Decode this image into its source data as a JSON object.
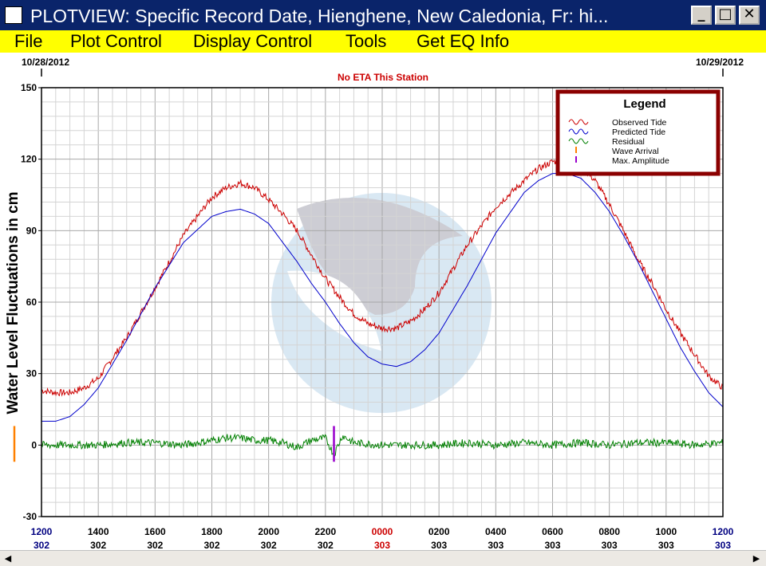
{
  "window": {
    "title": "PLOTVIEW: Specific Record Date, Hienghene, New Caledonia, Fr: hi...",
    "minimize_glyph": "_",
    "maximize_glyph": "□",
    "close_glyph": "✕"
  },
  "menu": [
    {
      "label": "File"
    },
    {
      "label": "Plot Control"
    },
    {
      "label": "Display Control"
    },
    {
      "label": "Tools"
    },
    {
      "label": "Get EQ Info"
    }
  ],
  "plot": {
    "date_left": "10/28/2012",
    "date_right": "10/29/2012",
    "eta_text": "No ETA This Station",
    "legend": {
      "title": "Legend",
      "items": [
        {
          "label": "Observed Tide",
          "color": "#cc0000"
        },
        {
          "label": "Predicted Tide",
          "color": "#0000cc"
        },
        {
          "label": "Residual",
          "color": "#008000"
        },
        {
          "label": "Wave Arrival",
          "color": "#ff8000"
        },
        {
          "label": "Max. Amplitude",
          "color": "#9900cc"
        }
      ]
    }
  },
  "colors": {
    "observed": "#cc0000",
    "predicted": "#0000cc",
    "residual": "#008000",
    "wave_arrival": "#ff8000",
    "max_amplitude": "#9900cc",
    "date_change_label": "#cc0000",
    "end_label": "#000080",
    "legend_frame": "#8b0000",
    "title_bar": "#0a246a",
    "menu_bar": "#ffff00"
  },
  "chart_data": {
    "type": "line",
    "ylabel": "Water Level Fluctuations in cm",
    "xlabel": "",
    "ylim": [
      -30,
      150
    ],
    "yticks": [
      -30,
      0,
      30,
      60,
      90,
      120,
      150
    ],
    "xlim_hours": [
      12,
      36
    ],
    "x_ticks": [
      {
        "time": "1200",
        "day": "302",
        "hour": 12,
        "style": "end"
      },
      {
        "time": "1400",
        "day": "302",
        "hour": 14,
        "style": "normal"
      },
      {
        "time": "1600",
        "day": "302",
        "hour": 16,
        "style": "normal"
      },
      {
        "time": "1800",
        "day": "302",
        "hour": 18,
        "style": "normal"
      },
      {
        "time": "2000",
        "day": "302",
        "hour": 20,
        "style": "normal"
      },
      {
        "time": "2200",
        "day": "302",
        "hour": 22,
        "style": "normal"
      },
      {
        "time": "0000",
        "day": "303",
        "hour": 24,
        "style": "date"
      },
      {
        "time": "0200",
        "day": "303",
        "hour": 26,
        "style": "normal"
      },
      {
        "time": "0400",
        "day": "303",
        "hour": 28,
        "style": "normal"
      },
      {
        "time": "0600",
        "day": "303",
        "hour": 30,
        "style": "normal"
      },
      {
        "time": "0800",
        "day": "303",
        "hour": 32,
        "style": "normal"
      },
      {
        "time": "1000",
        "day": "303",
        "hour": 34,
        "style": "normal"
      },
      {
        "time": "1200",
        "day": "303",
        "hour": 36,
        "style": "end"
      }
    ],
    "grid": true,
    "legend_position": "top-right",
    "series": [
      {
        "name": "Observed Tide",
        "x_hours": [
          12,
          12.5,
          13,
          13.5,
          14,
          15,
          16,
          17,
          18,
          18.5,
          19,
          19.5,
          20,
          20.5,
          21,
          21.5,
          22,
          22.5,
          23,
          23.5,
          24,
          24.5,
          25,
          25.5,
          26,
          27,
          28,
          29,
          29.5,
          30,
          30.5,
          31,
          31.5,
          32,
          32.5,
          33,
          33.5,
          34,
          34.5,
          35,
          35.5,
          36
        ],
        "values": [
          23,
          22,
          22,
          24,
          28,
          45,
          66,
          88,
          104,
          108,
          110,
          108,
          103,
          97,
          90,
          80,
          70,
          62,
          55,
          51,
          49,
          49,
          52,
          57,
          64,
          84,
          100,
          111,
          116,
          119,
          119,
          117,
          111,
          101,
          90,
          78,
          68,
          57,
          47,
          38,
          29,
          24
        ]
      },
      {
        "name": "Predicted Tide",
        "x_hours": [
          12,
          12.5,
          13,
          13.5,
          14,
          15,
          16,
          17,
          18,
          18.5,
          19,
          19.5,
          20,
          20.5,
          21,
          21.5,
          22,
          22.5,
          23,
          23.5,
          24,
          24.5,
          25,
          25.5,
          26,
          27,
          28,
          29,
          29.5,
          30,
          30.5,
          31,
          31.5,
          32,
          32.5,
          33,
          33.5,
          34,
          34.5,
          35,
          35.5,
          36
        ],
        "values": [
          10,
          10,
          12,
          17,
          24,
          44,
          66,
          85,
          96,
          98,
          99,
          97,
          93,
          85,
          77,
          68,
          60,
          51,
          43,
          37,
          34,
          33,
          35,
          40,
          47,
          67,
          89,
          106,
          111,
          114,
          114,
          112,
          106,
          98,
          88,
          77,
          65,
          53,
          41,
          31,
          22,
          16
        ]
      },
      {
        "name": "Residual",
        "x_hours": [
          12,
          13,
          14,
          15,
          16,
          17,
          18,
          18.5,
          19,
          19.5,
          20,
          20.5,
          21,
          21.5,
          22,
          22.3,
          22.6,
          23,
          24,
          25,
          26,
          27,
          28,
          29,
          30,
          31,
          32,
          33,
          34,
          35,
          36
        ],
        "values": [
          0,
          0,
          0,
          1,
          1,
          0,
          2,
          3,
          3,
          2,
          2,
          1,
          -1,
          2,
          3,
          -4,
          4,
          1,
          0,
          0,
          0,
          1,
          0,
          1,
          0,
          1,
          0,
          1,
          1,
          0,
          1
        ]
      }
    ],
    "markers": [
      {
        "name": "Wave Arrival",
        "x_hour": 12,
        "ymin": -7,
        "ymax": 8
      },
      {
        "name": "Max. Amplitude",
        "x_hour": 22.3,
        "ymin": -7,
        "ymax": 8
      }
    ]
  }
}
